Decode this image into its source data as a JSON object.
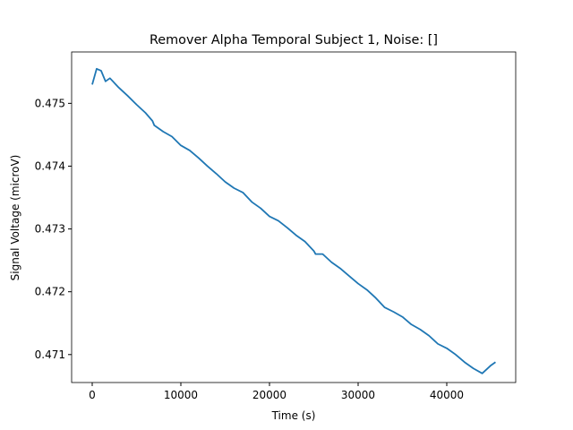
{
  "chart_data": {
    "type": "line",
    "title": "Remover Alpha Temporal Subject 1, Noise: []",
    "x_label": "Time (s)",
    "y_label": "Signal Voltage (microV)",
    "x": [
      0,
      500,
      1000,
      1500,
      2000,
      3000,
      4000,
      5000,
      6000,
      6800,
      7000,
      8000,
      9000,
      10000,
      11000,
      12000,
      13000,
      14000,
      15000,
      16000,
      17000,
      18000,
      19000,
      20000,
      21000,
      22000,
      23000,
      24000,
      25000,
      25200,
      26000,
      27000,
      28000,
      29000,
      30000,
      31000,
      32000,
      33000,
      34000,
      35000,
      36000,
      37000,
      38000,
      39000,
      40000,
      41000,
      42000,
      43000,
      44000,
      45000,
      45500
    ],
    "series": [
      {
        "name": "signal",
        "color": "#1f77b4",
        "values": [
          0.4753,
          0.47555,
          0.47552,
          0.47535,
          0.4754,
          0.47525,
          0.47512,
          0.47498,
          0.47485,
          0.47472,
          0.47465,
          0.47455,
          0.47447,
          0.47433,
          0.47425,
          0.47413,
          0.474,
          0.47388,
          0.47375,
          0.47365,
          0.47358,
          0.47343,
          0.47333,
          0.4732,
          0.47313,
          0.47302,
          0.4729,
          0.4728,
          0.47265,
          0.4726,
          0.4726,
          0.47247,
          0.47237,
          0.47225,
          0.47213,
          0.47203,
          0.4719,
          0.47175,
          0.47168,
          0.4716,
          0.47148,
          0.4714,
          0.4713,
          0.47117,
          0.4711,
          0.471,
          0.47088,
          0.47078,
          0.4707,
          0.47083,
          0.47088
        ]
      }
    ],
    "xlim": [
      -2323,
      47778
    ],
    "ylim": [
      0.470555,
      0.475818
    ],
    "xticks": [
      0,
      10000,
      20000,
      30000,
      40000
    ],
    "yticks": [
      0.471,
      0.472,
      0.473,
      0.474,
      0.475
    ]
  }
}
